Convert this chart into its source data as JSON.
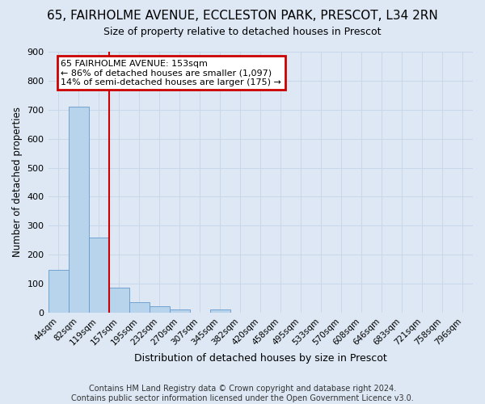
{
  "title_line1": "65, FAIRHOLME AVENUE, ECCLESTON PARK, PRESCOT, L34 2RN",
  "title_line2": "Size of property relative to detached houses in Prescot",
  "xlabel": "Distribution of detached houses by size in Prescot",
  "ylabel": "Number of detached properties",
  "categories": [
    "44sqm",
    "82sqm",
    "119sqm",
    "157sqm",
    "195sqm",
    "232sqm",
    "270sqm",
    "307sqm",
    "345sqm",
    "382sqm",
    "420sqm",
    "458sqm",
    "495sqm",
    "533sqm",
    "570sqm",
    "608sqm",
    "646sqm",
    "683sqm",
    "721sqm",
    "758sqm",
    "796sqm"
  ],
  "values": [
    148,
    710,
    260,
    85,
    37,
    22,
    12,
    0,
    12,
    0,
    0,
    0,
    0,
    0,
    0,
    0,
    0,
    0,
    0,
    0,
    0
  ],
  "bar_color": "#b8d4ed",
  "bar_edge_color": "#6699cc",
  "annotation_text": "65 FAIRHOLME AVENUE: 153sqm\n← 86% of detached houses are smaller (1,097)\n14% of semi-detached houses are larger (175) →",
  "annotation_box_color": "#ffffff",
  "annotation_box_edge": "#cc0000",
  "vline_color": "#cc0000",
  "ylim": [
    0,
    900
  ],
  "yticks": [
    0,
    100,
    200,
    300,
    400,
    500,
    600,
    700,
    800,
    900
  ],
  "grid_color": "#c8d8ea",
  "background_color": "#dde8f4",
  "footer_text": "Contains HM Land Registry data © Crown copyright and database right 2024.\nContains public sector information licensed under the Open Government Licence v3.0.",
  "footer_fontsize": 7,
  "title1_fontsize": 11,
  "title2_fontsize": 9,
  "vline_index": 3
}
